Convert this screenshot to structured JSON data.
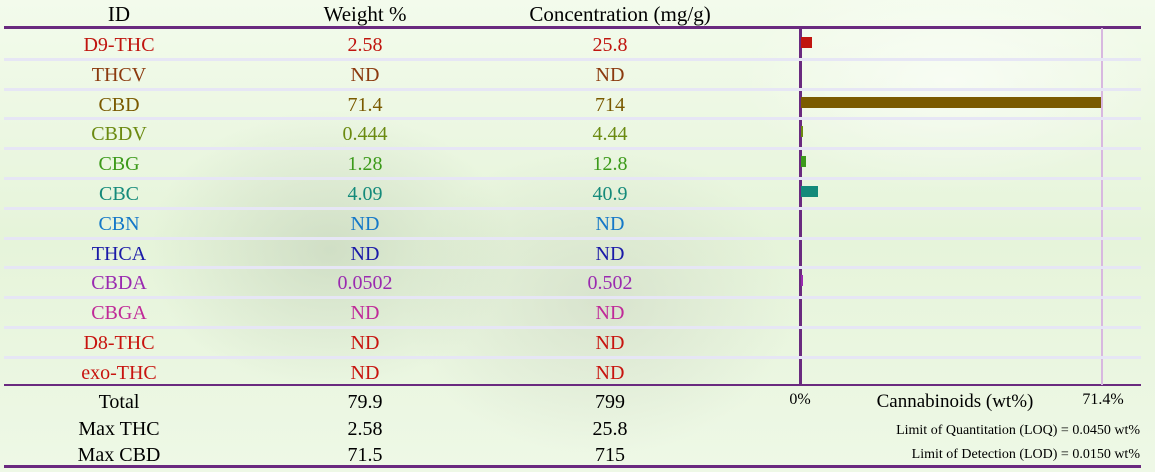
{
  "table": {
    "headers": {
      "id": "ID",
      "weight": "Weight %",
      "concentration": "Concentration (mg/g)"
    },
    "rows": [
      {
        "id": "D9-THC",
        "weight": "2.58",
        "conc": "25.8",
        "color": "#c0150f"
      },
      {
        "id": "THCV",
        "weight": "ND",
        "conc": "ND",
        "color": "#8b3a0e"
      },
      {
        "id": "CBD",
        "weight": "71.4",
        "conc": "714",
        "color": "#7a5a00"
      },
      {
        "id": "CBDV",
        "weight": "0.444",
        "conc": "4.44",
        "color": "#6b8a10"
      },
      {
        "id": "CBG",
        "weight": "1.28",
        "conc": "12.8",
        "color": "#3c9a1a"
      },
      {
        "id": "CBC",
        "weight": "4.09",
        "conc": "40.9",
        "color": "#148a7a"
      },
      {
        "id": "CBN",
        "weight": "ND",
        "conc": "ND",
        "color": "#1478c8"
      },
      {
        "id": "THCA",
        "weight": "ND",
        "conc": "ND",
        "color": "#1a1aa8"
      },
      {
        "id": "CBDA",
        "weight": "0.0502",
        "conc": "0.502",
        "color": "#9a2ab0"
      },
      {
        "id": "CBGA",
        "weight": "ND",
        "conc": "ND",
        "color": "#c02a98"
      },
      {
        "id": "D8-THC",
        "weight": "ND",
        "conc": "ND",
        "color": "#c8140f"
      },
      {
        "id": "exo-THC",
        "weight": "ND",
        "conc": "ND",
        "color": "#c8140f"
      }
    ],
    "totals": [
      {
        "label": "Total",
        "weight": "79.9",
        "conc": "799"
      },
      {
        "label": "Max THC",
        "weight": "2.58",
        "conc": "25.8"
      },
      {
        "label": "Max CBD",
        "weight": "71.5",
        "conc": "715"
      }
    ]
  },
  "chart_labels": {
    "x_min_label": "0%",
    "title": "Cannabinoids (wt%)",
    "x_max_label": "71.4%",
    "loq": "Limit of Quantitation (LOQ) = 0.0450 wt%",
    "lod": "Limit of Detection (LOD) = 0.0150 wt%"
  },
  "chart_data": {
    "type": "bar",
    "orientation": "horizontal",
    "title": "Cannabinoids (wt%)",
    "xlim": [
      0,
      71.4
    ],
    "categories": [
      "D9-THC",
      "THCV",
      "CBD",
      "CBDV",
      "CBG",
      "CBC",
      "CBN",
      "THCA",
      "CBDA",
      "CBGA",
      "D8-THC",
      "exo-THC"
    ],
    "values": [
      2.58,
      0,
      71.4,
      0.444,
      1.28,
      4.09,
      0,
      0,
      0.0502,
      0,
      0,
      0
    ],
    "colors": [
      "#c0150f",
      "#8b3a0e",
      "#7a5a00",
      "#6b8a10",
      "#3c9a1a",
      "#148a7a",
      "#1478c8",
      "#1a1aa8",
      "#9a2ab0",
      "#c02a98",
      "#c8140f",
      "#c8140f"
    ]
  }
}
